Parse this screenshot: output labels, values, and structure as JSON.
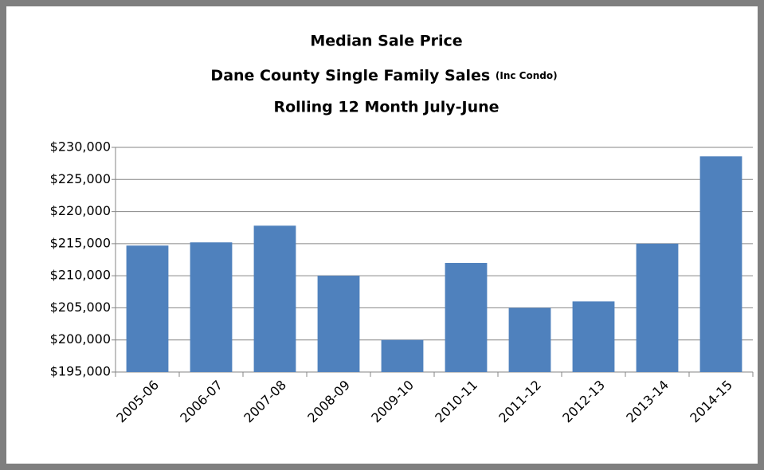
{
  "chart_data": {
    "type": "bar",
    "title": "Median Sale Price",
    "subtitle": "Dane County Single Family Sales",
    "subtitle_note": "(Inc Condo)",
    "subtitle2": "Rolling 12 Month July-June",
    "categories": [
      "2005-06",
      "2006-07",
      "2007-08",
      "2008-09",
      "2009-10",
      "2010-11",
      "2011-12",
      "2012-13",
      "2013-14",
      "2014-15"
    ],
    "values": [
      214700,
      215200,
      217800,
      210000,
      200000,
      212000,
      205000,
      206000,
      215000,
      228600
    ],
    "color": "#4f81bd",
    "ylim": [
      195000,
      230000
    ],
    "yticks": [
      {
        "value": 195000,
        "label": "$195,000"
      },
      {
        "value": 200000,
        "label": "$200,000"
      },
      {
        "value": 205000,
        "label": "$205,000"
      },
      {
        "value": 210000,
        "label": "$210,000"
      },
      {
        "value": 215000,
        "label": "$215,000"
      },
      {
        "value": 220000,
        "label": "$220,000"
      },
      {
        "value": 225000,
        "label": "$225,000"
      },
      {
        "value": 230000,
        "label": "$230,000"
      }
    ],
    "grid": true
  }
}
